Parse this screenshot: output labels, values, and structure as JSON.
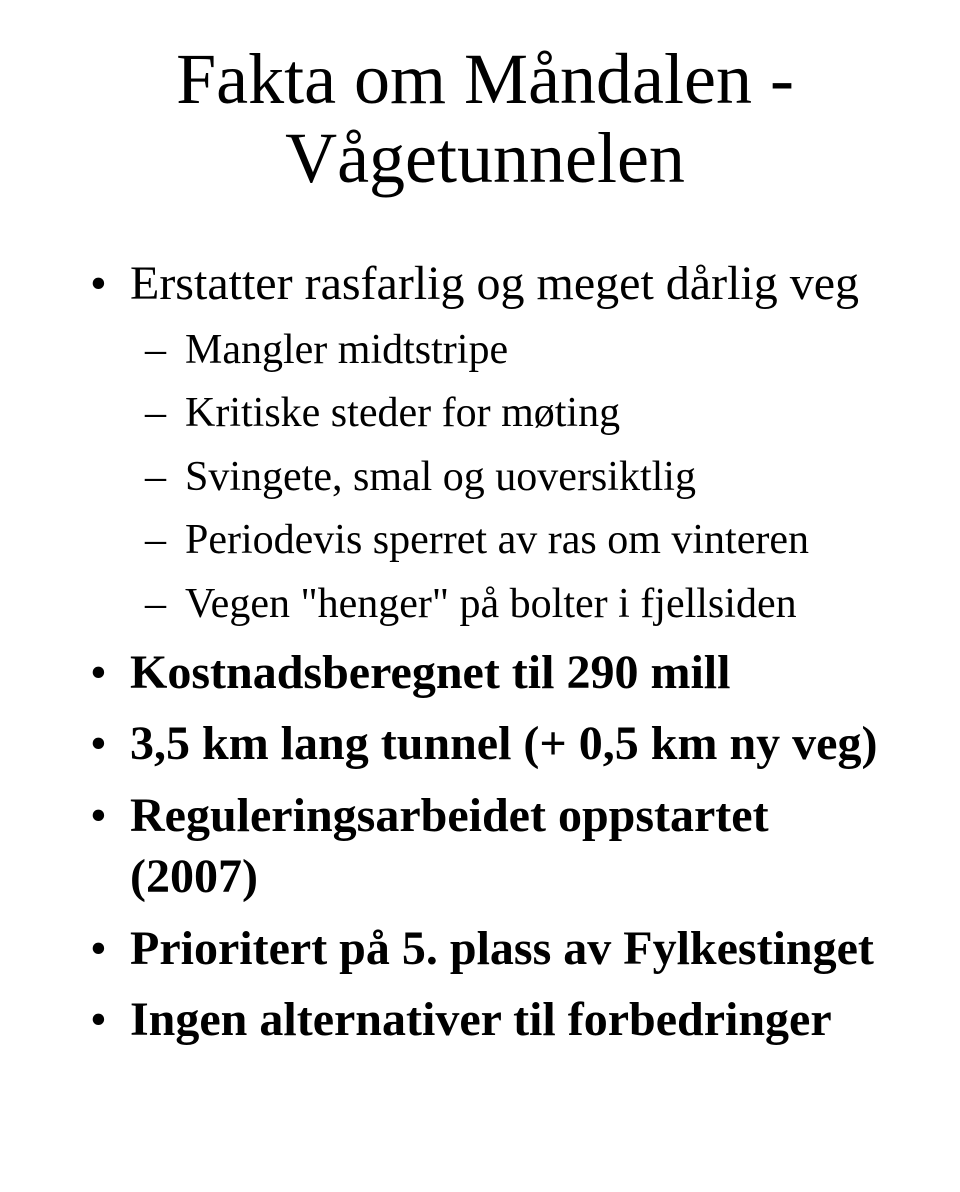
{
  "title_line1": "Fakta om Måndalen -",
  "title_line2": "Vågetunnelen",
  "bullets": [
    {
      "text": "Erstatter rasfarlig og meget dårlig veg",
      "bold": false,
      "sub": [
        "Mangler midtstripe",
        "Kritiske steder for møting",
        "Svingete, smal og uoversiktlig",
        "Periodevis sperret av ras om vinteren",
        "Vegen \"henger\" på bolter i fjellsiden"
      ]
    },
    {
      "text": "Kostnadsberegnet til 290 mill",
      "bold": true,
      "sub": []
    },
    {
      "text": "3,5 km lang tunnel (+ 0,5 km ny veg)",
      "bold": true,
      "sub": []
    },
    {
      "text": "Reguleringsarbeidet oppstartet (2007)",
      "bold": true,
      "sub": []
    },
    {
      "text": "Prioritert på 5. plass av Fylkestinget",
      "bold": true,
      "sub": []
    },
    {
      "text": "Ingen alternativer til forbedringer",
      "bold": true,
      "sub": []
    }
  ]
}
